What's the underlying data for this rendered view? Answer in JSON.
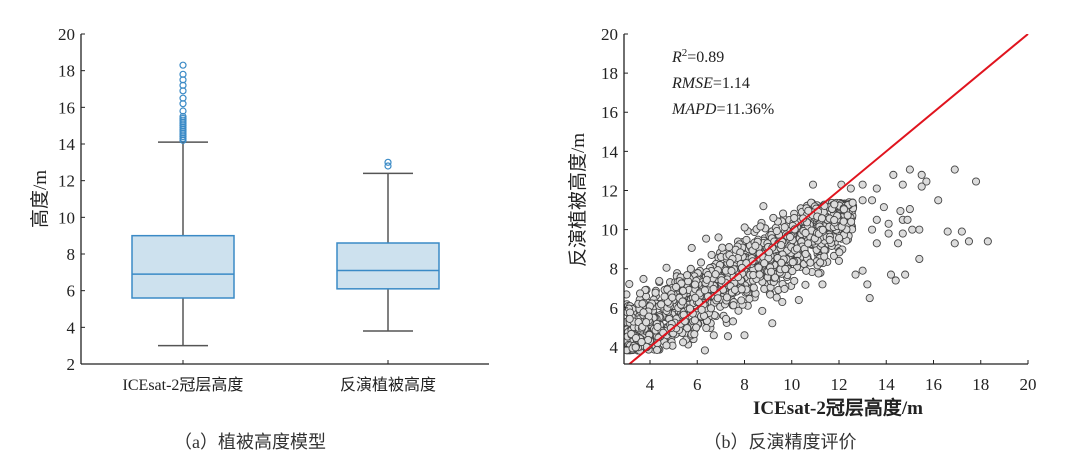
{
  "chart_data": [
    {
      "type": "box",
      "caption": "（a）植被高度模型",
      "ylabel": "高度/m",
      "xlabel": "",
      "ylim": [
        2,
        20
      ],
      "yticks": [
        "2",
        "4",
        "6",
        "8",
        "10",
        "12",
        "14",
        "16",
        "18",
        "20"
      ],
      "categories": [
        "ICEsat-2冠层高度",
        "反演植被高度"
      ],
      "boxes": [
        {
          "whisker_low": 3.0,
          "q1": 5.6,
          "median": 6.9,
          "q3": 9.0,
          "whisker_high": 14.1,
          "outliers": [
            14.2,
            14.3,
            14.4,
            14.5,
            14.6,
            14.7,
            14.8,
            14.9,
            15.0,
            15.1,
            15.2,
            15.3,
            15.4,
            15.5,
            15.8,
            16.2,
            16.5,
            16.9,
            17.2,
            17.5,
            17.8,
            18.3
          ]
        },
        {
          "whisker_low": 3.8,
          "q1": 6.1,
          "median": 7.1,
          "q3": 8.6,
          "whisker_high": 12.4,
          "outliers": [
            12.8,
            13.0
          ]
        }
      ],
      "colors": {
        "box_fill": "#cde1ee",
        "box_edge": "#3a8ac6",
        "whisker": "#555555",
        "outlier": "#3a8ac6"
      }
    },
    {
      "type": "scatter",
      "caption": "（b）反演精度评价",
      "xlabel": "ICEsat-2冠层高度/m",
      "ylabel": "反演植被高度/m",
      "xlim": [
        2.9,
        20
      ],
      "ylim": [
        3.13,
        20
      ],
      "xticks": [
        "4",
        "6",
        "8",
        "10",
        "12",
        "14",
        "16",
        "18",
        "20"
      ],
      "yticks": [
        "4",
        "6",
        "8",
        "10",
        "12",
        "14",
        "16",
        "18",
        "20"
      ],
      "stats": {
        "r2_label": "R",
        "r2_sup": "2",
        "r2_value": "=0.89",
        "rmse_label": "RMSE",
        "rmse_value": "=1.14",
        "mapd_label": "MAPD",
        "mapd_value": "=11.36%"
      },
      "reference_line": {
        "from": [
          3.1,
          3.1
        ],
        "to": [
          20,
          20
        ],
        "color": "#e0141e"
      },
      "dense_cloud": {
        "count": 1600,
        "x_range": [
          3.0,
          12.6
        ],
        "slope": 0.69,
        "intercept": 2.3,
        "y_sd": 0.85,
        "y_cap": 11.4
      },
      "points": [
        [
          15.0,
          13.07
        ],
        [
          16.9,
          13.07
        ],
        [
          17.8,
          12.46
        ],
        [
          18.3,
          9.4
        ],
        [
          16.2,
          11.5
        ],
        [
          16.6,
          9.9
        ],
        [
          17.2,
          9.9
        ],
        [
          16.9,
          9.3
        ],
        [
          17.5,
          9.4
        ],
        [
          15.5,
          12.8
        ],
        [
          15.7,
          12.46
        ],
        [
          15.5,
          12.2
        ],
        [
          14.3,
          12.8
        ],
        [
          14.7,
          12.3
        ],
        [
          15.0,
          11.05
        ],
        [
          14.6,
          10.95
        ],
        [
          14.7,
          10.5
        ],
        [
          14.9,
          10.5
        ],
        [
          15.4,
          10.0
        ],
        [
          15.1,
          10.0
        ],
        [
          14.7,
          9.8
        ],
        [
          14.5,
          9.3
        ],
        [
          15.4,
          8.5
        ],
        [
          14.8,
          7.7
        ],
        [
          14.2,
          7.7
        ],
        [
          14.4,
          7.4
        ],
        [
          13.3,
          6.5
        ],
        [
          13.2,
          7.2
        ],
        [
          13.0,
          7.9
        ],
        [
          12.7,
          7.7
        ],
        [
          13.6,
          12.1
        ],
        [
          13.0,
          12.3
        ],
        [
          13.0,
          11.5
        ],
        [
          13.4,
          11.5
        ],
        [
          13.9,
          11.15
        ],
        [
          13.6,
          10.5
        ],
        [
          14.1,
          10.3
        ],
        [
          13.6,
          9.3
        ],
        [
          14.1,
          9.8
        ],
        [
          13.4,
          10.0
        ],
        [
          10.9,
          12.3
        ],
        [
          12.1,
          12.3
        ],
        [
          12.5,
          12.1
        ],
        [
          8.8,
          11.2
        ],
        [
          4.7,
          8.05
        ],
        [
          6.9,
          9.6
        ],
        [
          8.0,
          4.6
        ],
        [
          7.3,
          4.55
        ],
        [
          6.7,
          4.6
        ],
        [
          10.3,
          6.4
        ],
        [
          9.6,
          6.3
        ],
        [
          11.3,
          7.2
        ],
        [
          4.3,
          3.85
        ]
      ],
      "colors": {
        "point_fill": "#dcdcdc",
        "point_edge": "#444444"
      }
    }
  ]
}
